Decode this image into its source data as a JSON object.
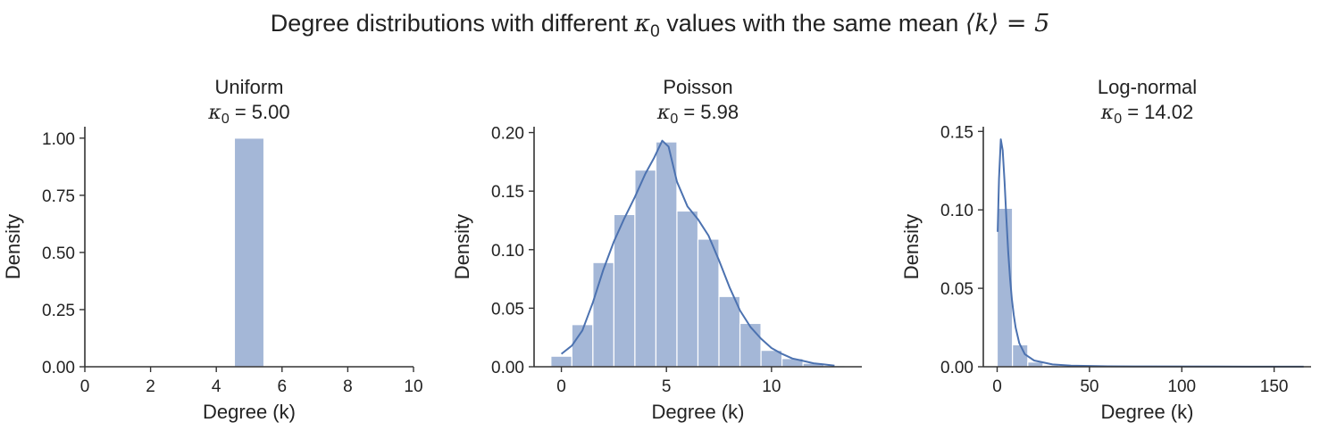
{
  "figure": {
    "title_prefix": "Degree distributions with different ",
    "title_kappa": "κ",
    "title_kappa_sub": "0",
    "title_middle": " values with the same mean ",
    "title_mean": "⟨k⟩ = 5"
  },
  "colors": {
    "bar": "#a4b7d7",
    "kde": "#4c72b0",
    "axis": "#333333"
  },
  "chart_data": [
    {
      "type": "bar",
      "title": "Uniform",
      "subtitle_symbol": "κ",
      "subtitle_sub": "0",
      "subtitle_value": "= 5.00",
      "xlabel": "Degree (k)",
      "ylabel": "Density",
      "xlim": [
        0,
        10
      ],
      "ylim": [
        0,
        1.05
      ],
      "xticks": [
        0,
        2,
        4,
        6,
        8,
        10
      ],
      "yticks": [
        "0.00",
        "0.25",
        "0.50",
        "0.75",
        "1.00"
      ],
      "bins": [
        {
          "x0": 4.55,
          "x1": 5.45,
          "value": 1.0
        }
      ],
      "kde": []
    },
    {
      "type": "bar",
      "title": "Poisson",
      "subtitle_symbol": "κ",
      "subtitle_sub": "0",
      "subtitle_value": "= 5.98",
      "xlabel": "Degree (k)",
      "ylabel": "Density",
      "xlim": [
        -1.3,
        14.3
      ],
      "ylim": [
        0,
        0.205
      ],
      "xticks": [
        0,
        5,
        10
      ],
      "yticks": [
        "0.00",
        "0.05",
        "0.10",
        "0.15",
        "0.20"
      ],
      "bins": [
        {
          "x0": -0.5,
          "x1": 0.5,
          "value": 0.009
        },
        {
          "x0": 0.5,
          "x1": 1.5,
          "value": 0.036
        },
        {
          "x0": 1.5,
          "x1": 2.5,
          "value": 0.089
        },
        {
          "x0": 2.5,
          "x1": 3.5,
          "value": 0.13
        },
        {
          "x0": 3.5,
          "x1": 4.5,
          "value": 0.168
        },
        {
          "x0": 4.5,
          "x1": 5.5,
          "value": 0.192
        },
        {
          "x0": 5.5,
          "x1": 6.5,
          "value": 0.133
        },
        {
          "x0": 6.5,
          "x1": 7.5,
          "value": 0.109
        },
        {
          "x0": 7.5,
          "x1": 8.5,
          "value": 0.06
        },
        {
          "x0": 8.5,
          "x1": 9.5,
          "value": 0.037
        },
        {
          "x0": 9.5,
          "x1": 10.5,
          "value": 0.014
        },
        {
          "x0": 10.5,
          "x1": 11.5,
          "value": 0.007
        },
        {
          "x0": 11.5,
          "x1": 12.5,
          "value": 0.003
        },
        {
          "x0": 12.5,
          "x1": 13.5,
          "value": 0.001
        }
      ],
      "kde": [
        [
          0,
          0.011
        ],
        [
          0.5,
          0.018
        ],
        [
          1,
          0.031
        ],
        [
          1.5,
          0.055
        ],
        [
          2,
          0.083
        ],
        [
          2.5,
          0.107
        ],
        [
          3,
          0.127
        ],
        [
          3.5,
          0.145
        ],
        [
          4,
          0.165
        ],
        [
          4.4,
          0.178
        ],
        [
          4.8,
          0.193
        ],
        [
          5.1,
          0.188
        ],
        [
          5.5,
          0.158
        ],
        [
          6,
          0.137
        ],
        [
          6.5,
          0.126
        ],
        [
          7,
          0.112
        ],
        [
          7.5,
          0.091
        ],
        [
          8,
          0.068
        ],
        [
          8.5,
          0.048
        ],
        [
          9,
          0.034
        ],
        [
          9.5,
          0.024
        ],
        [
          10,
          0.016
        ],
        [
          10.5,
          0.011
        ],
        [
          11,
          0.007
        ],
        [
          11.5,
          0.005
        ],
        [
          12,
          0.003
        ],
        [
          12.5,
          0.002
        ],
        [
          13,
          0.001
        ]
      ]
    },
    {
      "type": "bar",
      "title": "Log-normal",
      "subtitle_symbol": "κ",
      "subtitle_sub": "0",
      "subtitle_value": "= 14.02",
      "xlabel": "Degree (k)",
      "ylabel": "Density",
      "xlim": [
        -7.5,
        170
      ],
      "ylim": [
        0,
        0.153
      ],
      "xticks": [
        0,
        50,
        100,
        150
      ],
      "yticks": [
        "0.00",
        "0.05",
        "0.10",
        "0.15"
      ],
      "bins": [
        {
          "x0": 0,
          "x1": 8.3,
          "value": 0.101
        },
        {
          "x0": 8.3,
          "x1": 16.6,
          "value": 0.014
        },
        {
          "x0": 16.6,
          "x1": 24.9,
          "value": 0.003
        },
        {
          "x0": 24.9,
          "x1": 33.2,
          "value": 0.001
        },
        {
          "x0": 33.2,
          "x1": 41.5,
          "value": 0.0005
        },
        {
          "x0": 66.4,
          "x1": 74.7,
          "value": 0.0004
        }
      ],
      "kde": [
        [
          0.3,
          0.086
        ],
        [
          1,
          0.12
        ],
        [
          2,
          0.145
        ],
        [
          3,
          0.138
        ],
        [
          4,
          0.118
        ],
        [
          5,
          0.095
        ],
        [
          6,
          0.073
        ],
        [
          7,
          0.056
        ],
        [
          8,
          0.043
        ],
        [
          9,
          0.033
        ],
        [
          10,
          0.025
        ],
        [
          12,
          0.015
        ],
        [
          15,
          0.008
        ],
        [
          20,
          0.004
        ],
        [
          30,
          0.0015
        ],
        [
          40,
          0.0007
        ],
        [
          60,
          0.0003
        ],
        [
          80,
          0.0002
        ],
        [
          120,
          0.0001
        ],
        [
          166,
          5e-05
        ]
      ]
    }
  ]
}
